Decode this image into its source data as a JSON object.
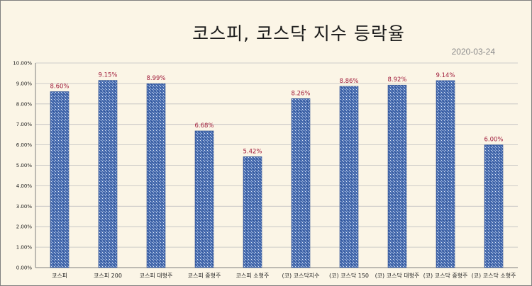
{
  "chart_data": {
    "type": "bar",
    "title": "코스피, 코스닥 지수 등락율",
    "subtitle": "2020-03-24",
    "categories": [
      "코스피",
      "코스피 200",
      "코스피 대형주",
      "코스피 중형주",
      "코스피 소형주",
      "(코) 코스닥지수",
      "(코) 코스닥 150",
      "(코) 코스닥 대형주",
      "(코) 코스닥 중형주",
      "(코) 코스닥 소형주"
    ],
    "values": [
      8.6,
      9.15,
      8.99,
      6.68,
      5.42,
      8.26,
      8.86,
      8.92,
      9.14,
      6.0
    ],
    "data_labels": [
      "8.60%",
      "9.15%",
      "8.99%",
      "6.68%",
      "5.42%",
      "8.26%",
      "8.86%",
      "8.92%",
      "9.14%",
      "6.00%"
    ],
    "y_ticks": [
      "0.00%",
      "1.00%",
      "2.00%",
      "3.00%",
      "4.00%",
      "5.00%",
      "6.00%",
      "7.00%",
      "8.00%",
      "9.00%",
      "10.00%"
    ],
    "ylim": [
      0,
      10
    ],
    "xlabel": "",
    "ylabel": "",
    "grid": true,
    "legend": "none",
    "colors": {
      "bar": "#4a6fb3",
      "bar_light": "#dfe7f5",
      "bar_edge": "#2e4f8f",
      "data_label": "#a01b3a",
      "grid": "#bfbfbf",
      "background": "#fbf5e6"
    }
  }
}
